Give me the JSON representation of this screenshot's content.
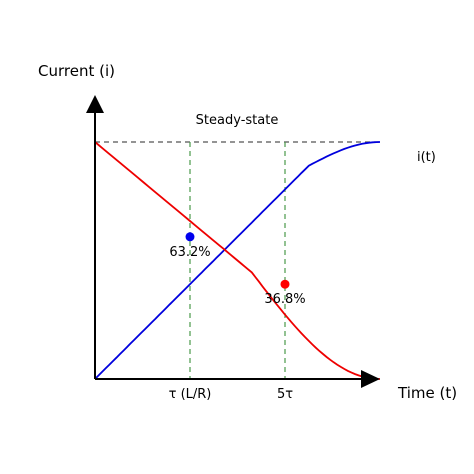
{
  "chart_data": {
    "type": "line",
    "ylabel": "Current (i)",
    "xlabel": "Time (t)",
    "xlim": [
      0,
      6
    ],
    "ylim": [
      0,
      1
    ],
    "x_ticks": [
      {
        "x": 2,
        "label": "τ (L/R)"
      },
      {
        "x": 4,
        "label": "5τ"
      }
    ],
    "steady_state": {
      "y": 1,
      "label": "Steady-state"
    },
    "series": [
      {
        "name": "i(t)",
        "color": "#0000dd",
        "shape": "rising",
        "x": [
          0,
          6
        ],
        "y": [
          0,
          1
        ]
      },
      {
        "name": "",
        "color": "#ee0000",
        "shape": "falling",
        "x": [
          0,
          6
        ],
        "y": [
          1,
          0
        ]
      }
    ],
    "points": [
      {
        "x": 2,
        "y": 0.6,
        "color": "#0000ee",
        "label": "63.2%"
      },
      {
        "x": 4,
        "y": 0.4,
        "color": "#ff0000",
        "label": "36.8%"
      }
    ],
    "reference_line_color": "#4a9a4a",
    "grid": false
  }
}
